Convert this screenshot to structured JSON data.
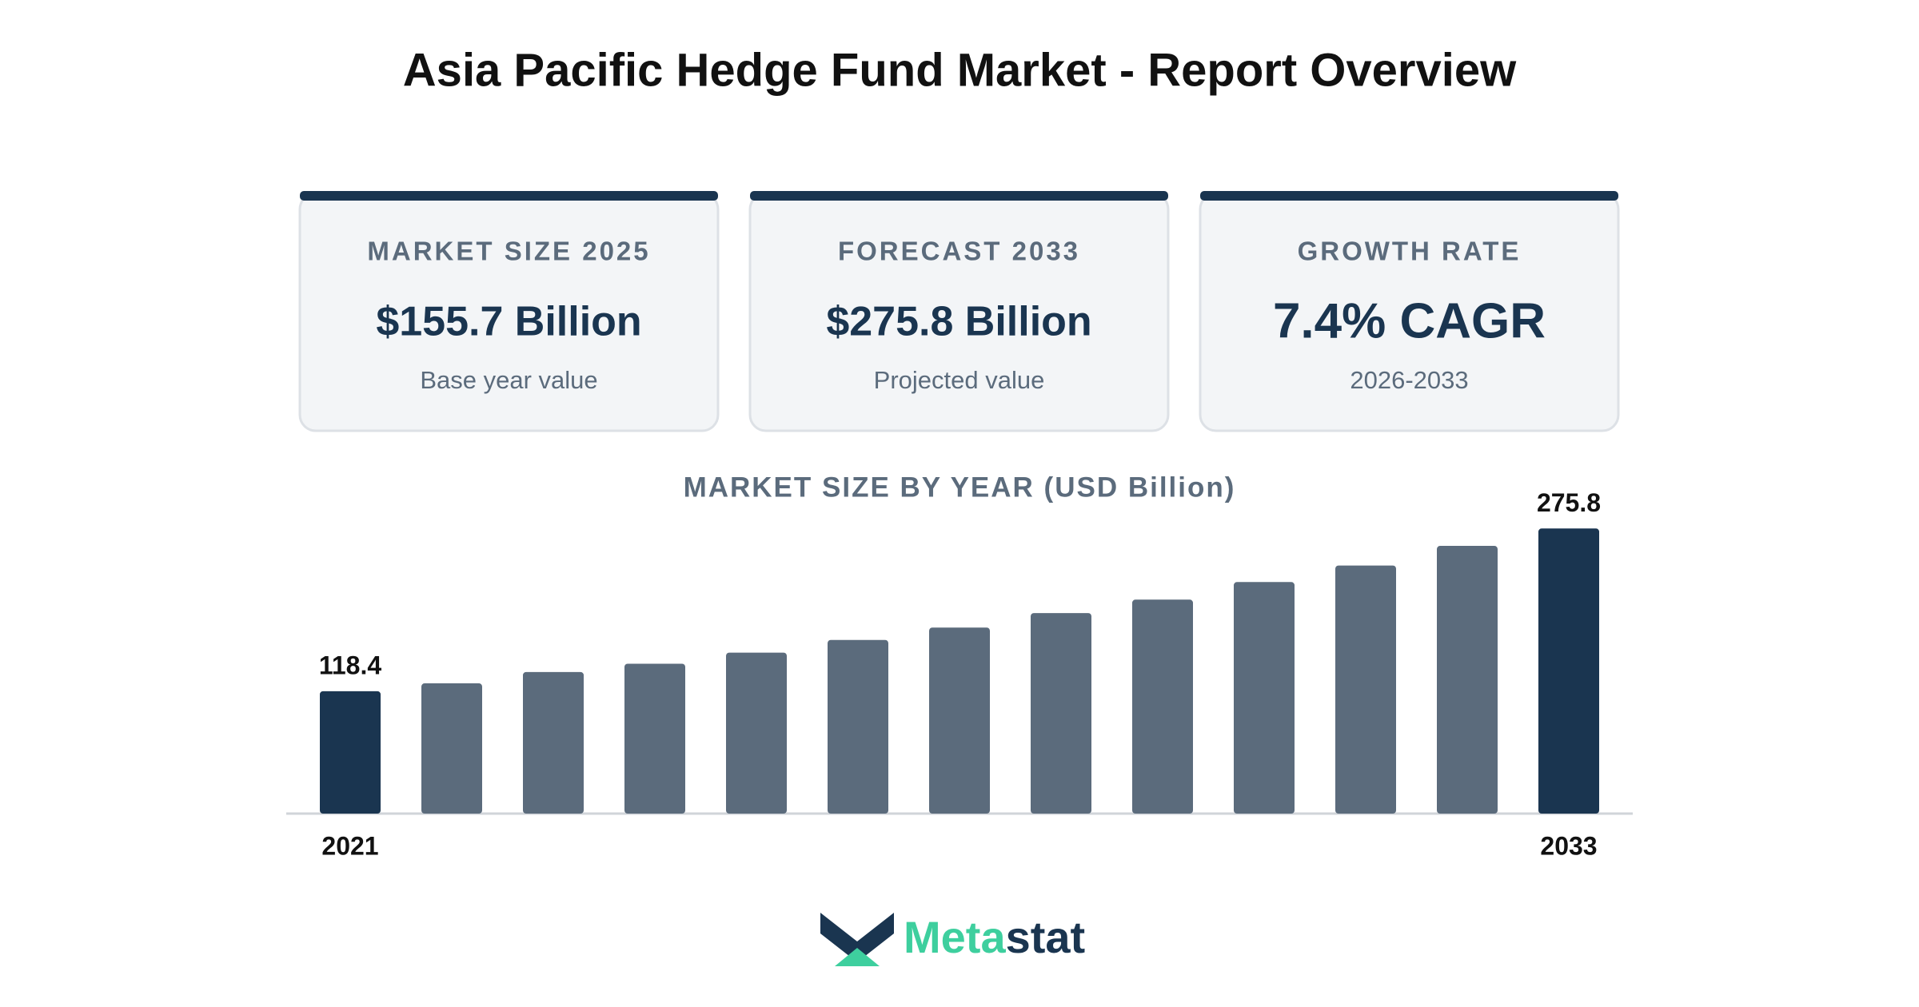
{
  "header": {
    "title": "Asia Pacific Hedge Fund Market - Report Overview"
  },
  "cards": [
    {
      "label": "MARKET SIZE 2025",
      "value": "$155.7 Billion",
      "note": "Base year value"
    },
    {
      "label": "FORECAST 2033",
      "value": "$275.8 Billion",
      "note": "Projected value"
    },
    {
      "label": "GROWTH RATE",
      "value": "7.4% CAGR",
      "note": "2026-2033"
    }
  ],
  "chart_data": {
    "type": "bar",
    "title": "MARKET SIZE BY YEAR (USD Billion)",
    "categories": [
      "2021",
      null,
      null,
      null,
      null,
      null,
      null,
      null,
      null,
      null,
      null,
      null,
      "2033"
    ],
    "values": [
      118.4,
      126,
      137,
      145,
      155.7,
      168,
      180,
      194,
      207,
      224,
      240,
      259,
      275.8
    ],
    "color": "#5b6b7c",
    "highlight_color": "#1a3550",
    "ylim": [
      0,
      300
    ]
  },
  "brand": {
    "parts": [
      "Meta",
      "stat"
    ]
  }
}
